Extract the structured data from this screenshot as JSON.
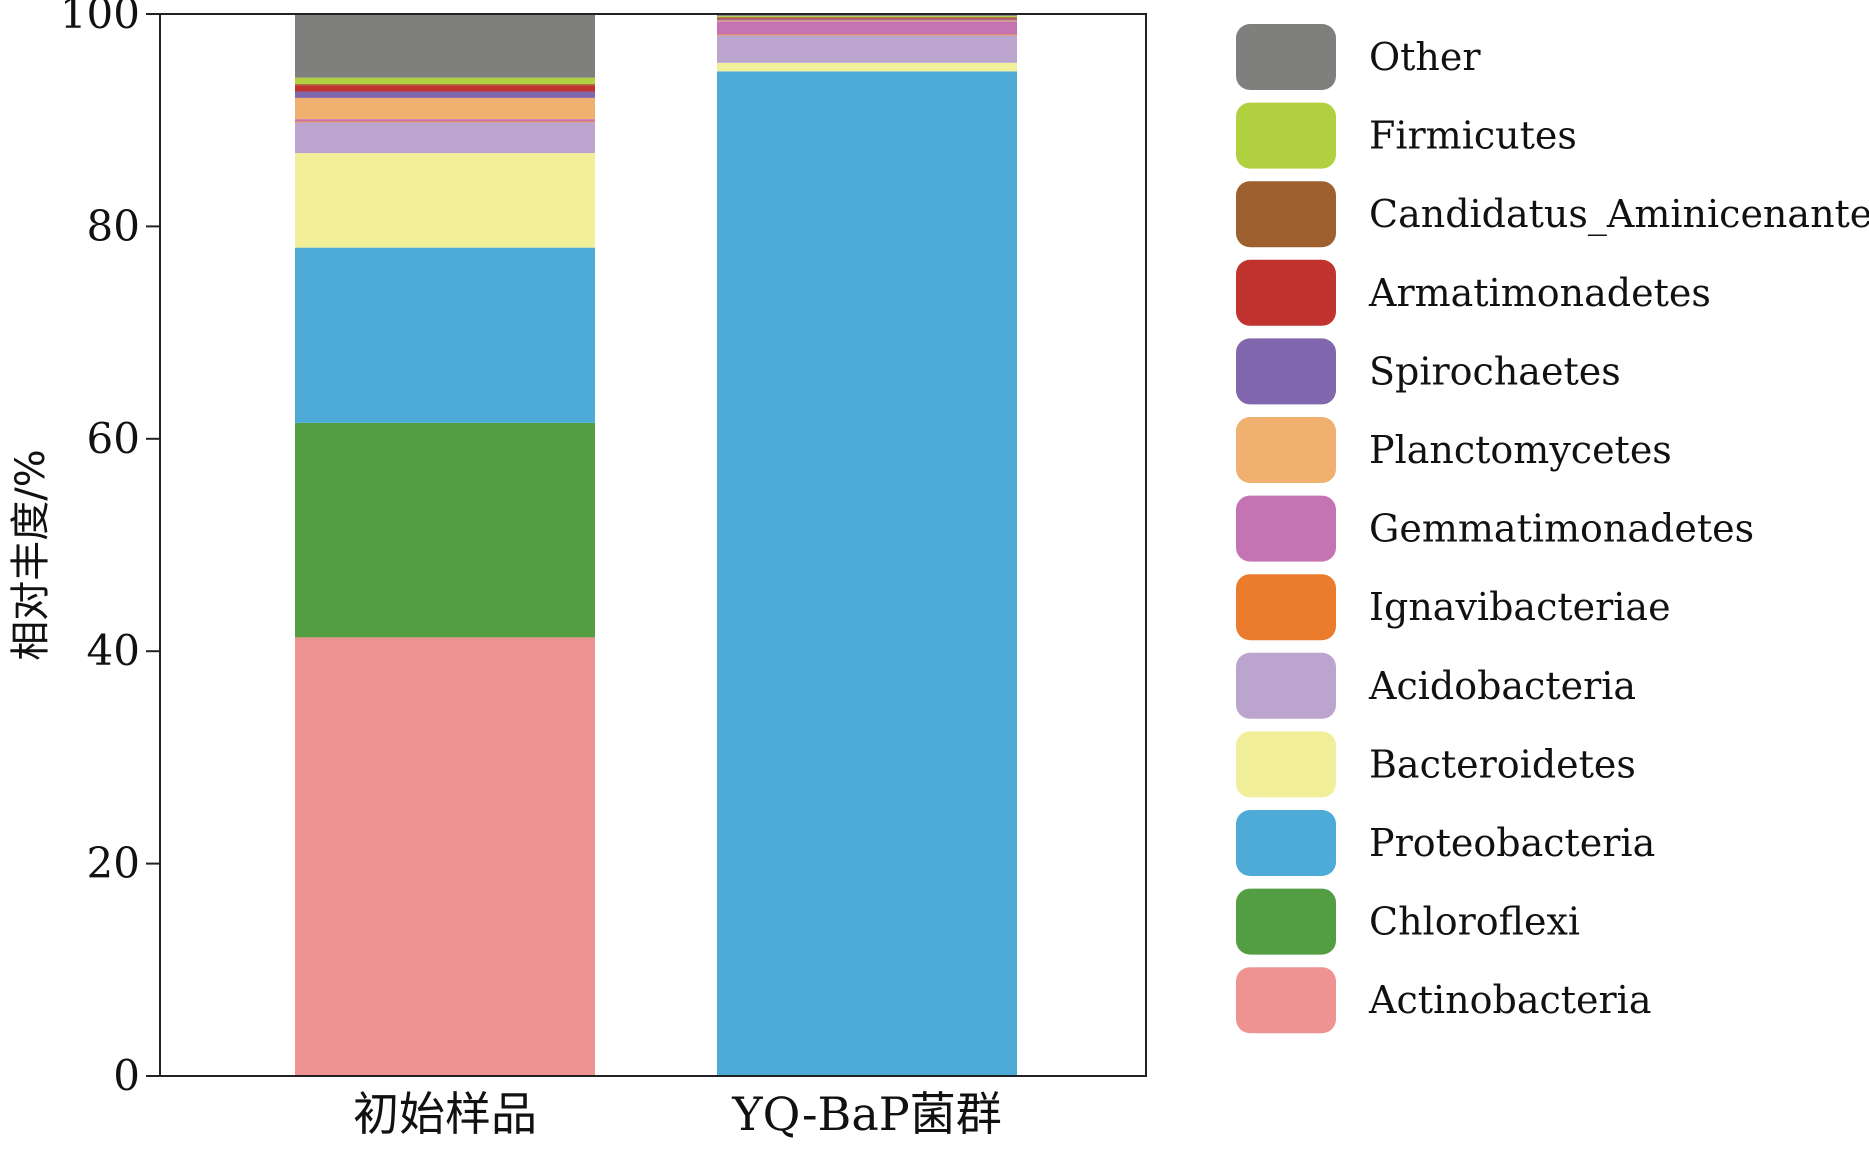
{
  "chart_data": {
    "type": "bar",
    "stacked": true,
    "title": "",
    "xlabel": "",
    "ylabel": "相对丰度/%",
    "ylim": [
      0,
      100
    ],
    "yticks": [
      0,
      20,
      40,
      60,
      80,
      100
    ],
    "grid": false,
    "legend": "right",
    "categories": [
      "初始样品",
      "YQ-BaP菌群"
    ],
    "series": [
      {
        "name": "Actinobacteria",
        "color": "#ee9392",
        "values": [
          41.3,
          0.0
        ]
      },
      {
        "name": "Chloroflexi",
        "color": "#539e43",
        "values": [
          20.2,
          0.0
        ]
      },
      {
        "name": "Proteobacteria",
        "color": "#4eaad7",
        "values": [
          16.5,
          94.6
        ]
      },
      {
        "name": "Bacteroidetes",
        "color": "#f1ef9a",
        "values": [
          8.9,
          0.8
        ]
      },
      {
        "name": "Acidobacteria",
        "color": "#bba5cf",
        "values": [
          2.9,
          2.6
        ]
      },
      {
        "name": "Ignavibacteriae",
        "color": "#eb7c2e",
        "values": [
          0.1,
          0.1
        ]
      },
      {
        "name": "Gemmatimonadetes",
        "color": "#c474b3",
        "values": [
          0.2,
          1.2
        ]
      },
      {
        "name": "Planctomycetes",
        "color": "#efb070",
        "values": [
          2.0,
          0.1
        ]
      },
      {
        "name": "Spirochaetes",
        "color": "#7f66ad",
        "values": [
          0.6,
          0.1
        ]
      },
      {
        "name": "Armatimonadetes",
        "color": "#c0332f",
        "values": [
          0.6,
          0.1
        ]
      },
      {
        "name": "Candidatus_Aminicenantes",
        "color": "#9e602e",
        "values": [
          0.1,
          0.1
        ]
      },
      {
        "name": "Firmicutes",
        "color": "#b1d03f",
        "values": [
          0.6,
          0.1
        ]
      },
      {
        "name": "Other",
        "color": "#7f7f7e",
        "values": [
          6.0,
          0.1
        ]
      }
    ]
  }
}
